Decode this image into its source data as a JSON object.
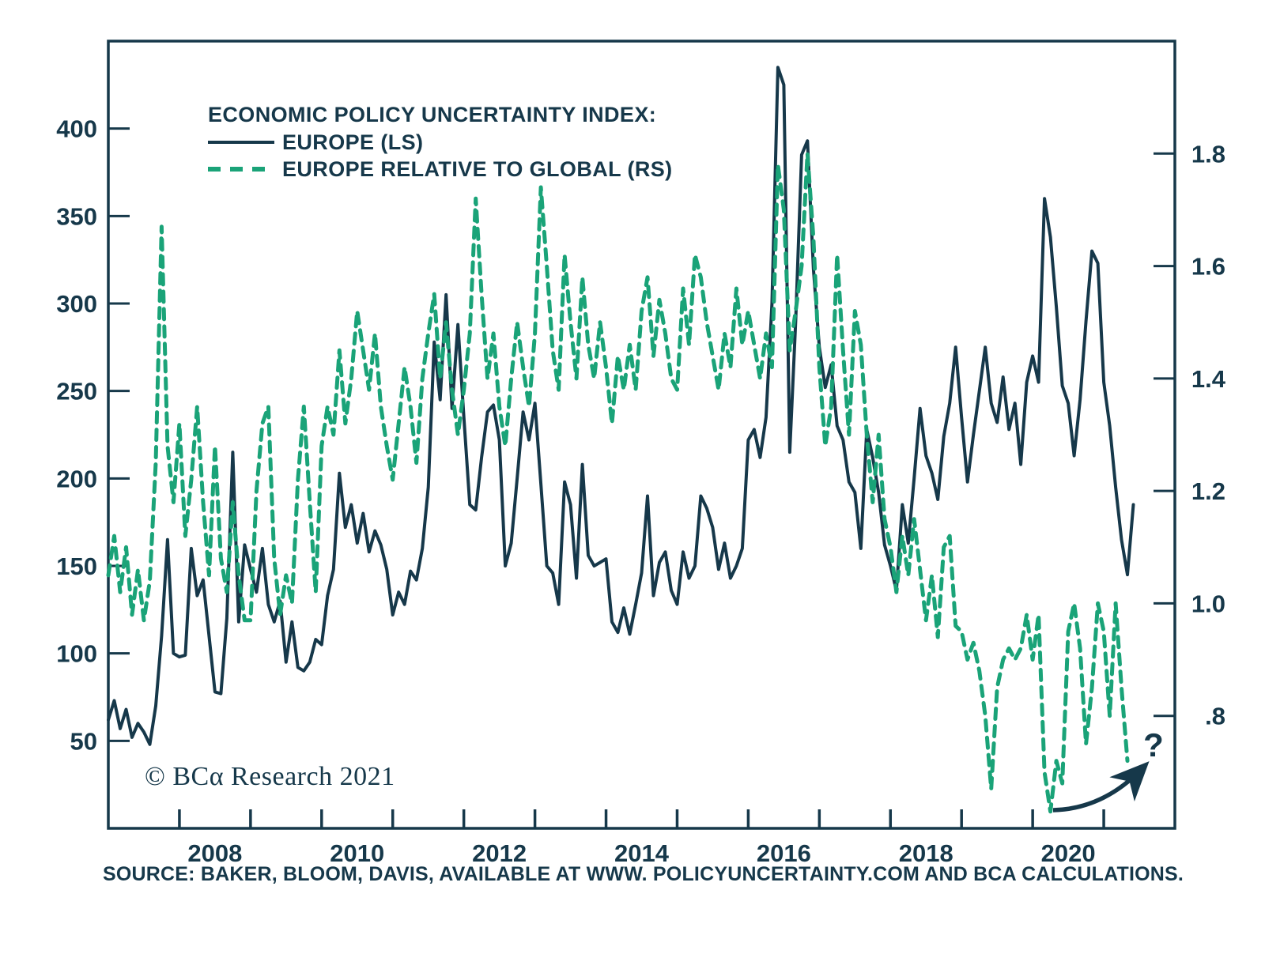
{
  "colors": {
    "axis": "#16384a",
    "europe_line": "#16384a",
    "relative_line": "#1aa378",
    "background": "#ffffff"
  },
  "legend": {
    "title": "ECONOMIC POLICY UNCERTAINTY INDEX:",
    "items": [
      {
        "label": "EUROPE (LS)",
        "style": "solid"
      },
      {
        "label": "EUROPE RELATIVE TO GLOBAL (RS)",
        "style": "dashed"
      }
    ]
  },
  "footer": {
    "copyright": "© BCα Research 2021",
    "source": "SOURCE: BAKER, BLOOM, DAVIS, AVAILABLE AT WWW. POLICYUNCERTAINTY.COM AND BCA CALCULATIONS."
  },
  "chart_data": {
    "type": "line",
    "title": "ECONOMIC POLICY UNCERTAINTY INDEX",
    "frequency": "monthly",
    "x_start": "2007-01",
    "x_axis": {
      "range_years": [
        2007,
        2022
      ],
      "year_ticks": [
        2008,
        2009,
        2010,
        2011,
        2012,
        2013,
        2014,
        2015,
        2016,
        2017,
        2018,
        2019,
        2020,
        2021
      ],
      "year_labels": [
        2008,
        2010,
        2012,
        2014,
        2016,
        2018,
        2020
      ]
    },
    "left_axis": {
      "label": "EUROPE (LS)",
      "range": [
        0,
        450
      ],
      "ticks": [
        50,
        100,
        150,
        200,
        250,
        300,
        350,
        400
      ]
    },
    "right_axis": {
      "label": "EUROPE RELATIVE TO GLOBAL (RS)",
      "range": [
        0.6,
        2.0
      ],
      "ticks": [
        {
          "value": 1.8,
          "label": "1.8"
        },
        {
          "value": 1.6,
          "label": "1.6"
        },
        {
          "value": 1.4,
          "label": "1.4"
        },
        {
          "value": 1.2,
          "label": "1.2"
        },
        {
          "value": 1.0,
          "label": "1.0"
        },
        {
          "value": 0.8,
          "label": ".8"
        }
      ]
    },
    "series": [
      {
        "name": "EUROPE (LS)",
        "axis": "left",
        "style": "solid",
        "color": "#16384a",
        "values": [
          62,
          73,
          57,
          68,
          52,
          60,
          55,
          48,
          70,
          110,
          165,
          100,
          98,
          99,
          160,
          133,
          142,
          110,
          78,
          77,
          120,
          215,
          118,
          162,
          148,
          135,
          160,
          128,
          118,
          130,
          95,
          118,
          92,
          90,
          95,
          108,
          105,
          133,
          148,
          203,
          172,
          185,
          163,
          180,
          158,
          170,
          162,
          148,
          122,
          135,
          128,
          147,
          142,
          160,
          195,
          278,
          245,
          305,
          240,
          288,
          235,
          185,
          182,
          212,
          238,
          242,
          222,
          150,
          163,
          200,
          238,
          222,
          243,
          197,
          150,
          146,
          128,
          198,
          185,
          143,
          208,
          156,
          150,
          152,
          154,
          118,
          112,
          126,
          111,
          128,
          146,
          190,
          133,
          152,
          158,
          136,
          128,
          158,
          143,
          150,
          190,
          183,
          172,
          148,
          163,
          143,
          150,
          160,
          222,
          228,
          212,
          235,
          300,
          435,
          425,
          215,
          290,
          385,
          393,
          320,
          275,
          252,
          265,
          230,
          222,
          198,
          192,
          160,
          228,
          212,
          192,
          162,
          150,
          136,
          185,
          163,
          200,
          240,
          213,
          203,
          188,
          224,
          243,
          275,
          235,
          198,
          225,
          250,
          275,
          243,
          232,
          258,
          228,
          243,
          208,
          255,
          270,
          255,
          360,
          338,
          298,
          253,
          243,
          213,
          245,
          290,
          330,
          323,
          255,
          230,
          195,
          165,
          145,
          185
        ]
      },
      {
        "name": "EUROPE RELATIVE TO GLOBAL (RS)",
        "axis": "right",
        "style": "dashed",
        "color": "#1aa378",
        "values": [
          1.05,
          1.12,
          1.02,
          1.1,
          0.98,
          1.06,
          0.97,
          1.04,
          1.25,
          1.67,
          1.28,
          1.18,
          1.32,
          1.12,
          1.22,
          1.35,
          1.18,
          1.05,
          1.28,
          1.08,
          1.02,
          1.18,
          1.05,
          0.97,
          0.97,
          1.2,
          1.32,
          1.35,
          1.08,
          0.98,
          1.05,
          1.0,
          1.22,
          1.35,
          1.18,
          1.02,
          1.28,
          1.35,
          1.3,
          1.45,
          1.32,
          1.4,
          1.52,
          1.45,
          1.38,
          1.48,
          1.35,
          1.28,
          1.22,
          1.32,
          1.42,
          1.35,
          1.25,
          1.4,
          1.48,
          1.55,
          1.4,
          1.5,
          1.38,
          1.3,
          1.38,
          1.48,
          1.72,
          1.55,
          1.4,
          1.48,
          1.35,
          1.28,
          1.4,
          1.5,
          1.42,
          1.35,
          1.48,
          1.74,
          1.6,
          1.45,
          1.38,
          1.62,
          1.5,
          1.4,
          1.58,
          1.46,
          1.4,
          1.5,
          1.42,
          1.32,
          1.44,
          1.38,
          1.46,
          1.38,
          1.52,
          1.58,
          1.44,
          1.54,
          1.48,
          1.4,
          1.38,
          1.56,
          1.46,
          1.62,
          1.58,
          1.5,
          1.44,
          1.38,
          1.48,
          1.42,
          1.56,
          1.46,
          1.52,
          1.46,
          1.4,
          1.48,
          1.42,
          1.78,
          1.7,
          1.45,
          1.52,
          1.6,
          1.8,
          1.65,
          1.42,
          1.28,
          1.35,
          1.62,
          1.45,
          1.3,
          1.52,
          1.46,
          1.3,
          1.18,
          1.3,
          1.15,
          1.1,
          1.02,
          1.12,
          1.05,
          1.15,
          1.06,
          0.97,
          1.05,
          0.94,
          1.1,
          1.12,
          0.96,
          0.95,
          0.9,
          0.93,
          0.88,
          0.8,
          0.67,
          0.85,
          0.9,
          0.92,
          0.9,
          0.92,
          0.98,
          0.9,
          0.98,
          0.7,
          0.63,
          0.72,
          0.68,
          0.95,
          1.0,
          0.92,
          0.75,
          0.85,
          1.0,
          0.95,
          0.8,
          1.0,
          0.85,
          0.72
        ]
      }
    ],
    "annotations": {
      "question_mark": "?",
      "arrow_to_question_mark": true
    },
    "grid": false,
    "legend_position": "top-left-inside"
  }
}
